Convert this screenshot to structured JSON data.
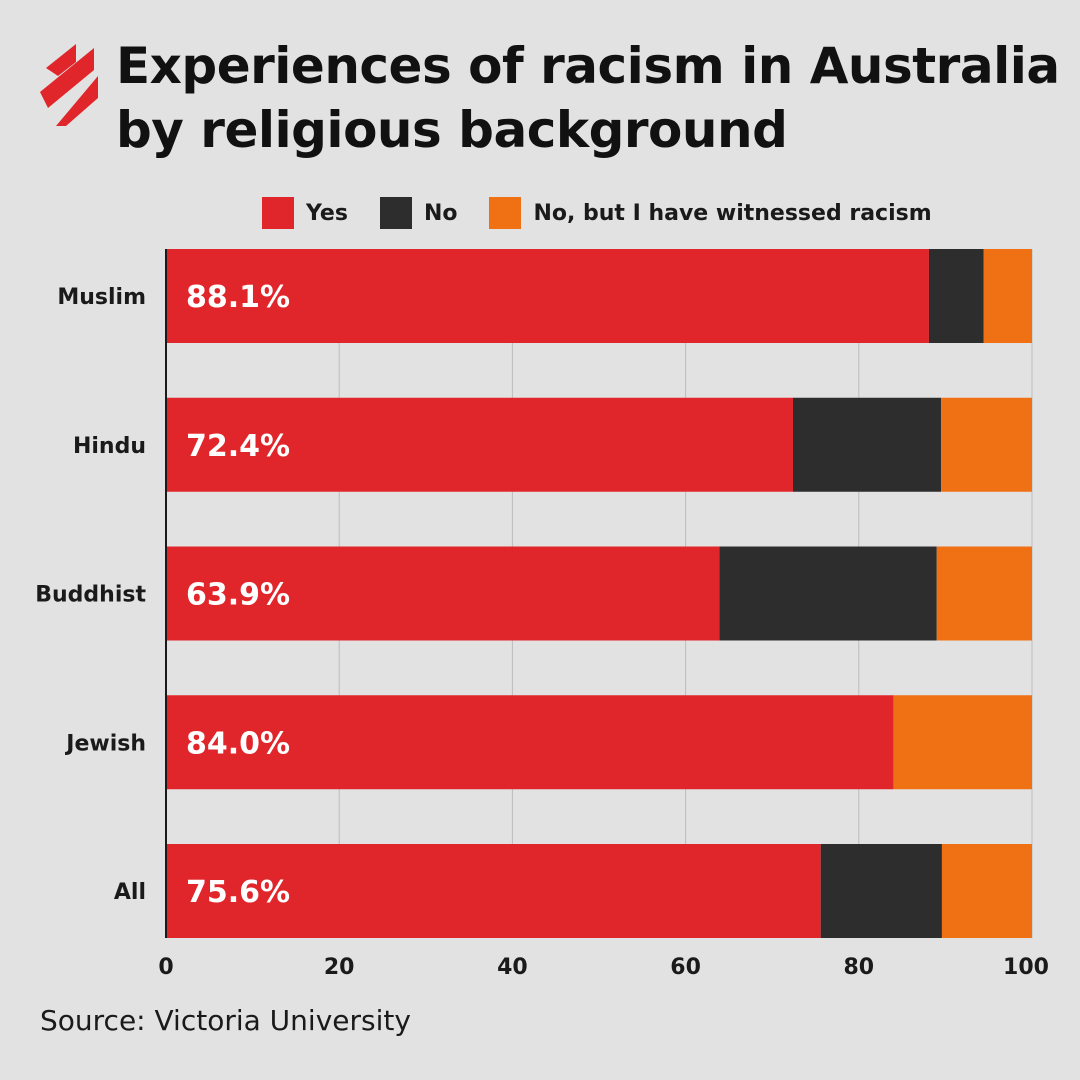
{
  "chart_data": {
    "type": "bar",
    "orientation": "horizontal",
    "stacked": true,
    "title_lines": [
      "Experiences of racism in Australia",
      "by religious background"
    ],
    "categories": [
      "Muslim",
      "Hindu",
      "Buddhist",
      "Jewish",
      "All"
    ],
    "series": [
      {
        "name": "Yes",
        "color": "#e1262b",
        "values": [
          88.1,
          72.4,
          63.9,
          84.0,
          75.6
        ],
        "labels": [
          "88.1%",
          "72.4%",
          "63.9%",
          "84.0%",
          "75.6%"
        ]
      },
      {
        "name": "No",
        "color": "#2d2d2d",
        "values": [
          6.3,
          17.1,
          25.1,
          0,
          14.0
        ]
      },
      {
        "name": "No, but I have witnessed racism",
        "color": "#f07014",
        "values": [
          5.6,
          10.5,
          11.0,
          16.0,
          10.4
        ]
      }
    ],
    "xlim": [
      0,
      100
    ],
    "xticks": [
      0,
      20,
      40,
      60,
      80,
      100
    ],
    "grid": true,
    "legend_position": "top"
  },
  "source": "Source: Victoria University",
  "logo": {
    "icon": "sbs-logo-icon",
    "color": "#e1262b"
  }
}
